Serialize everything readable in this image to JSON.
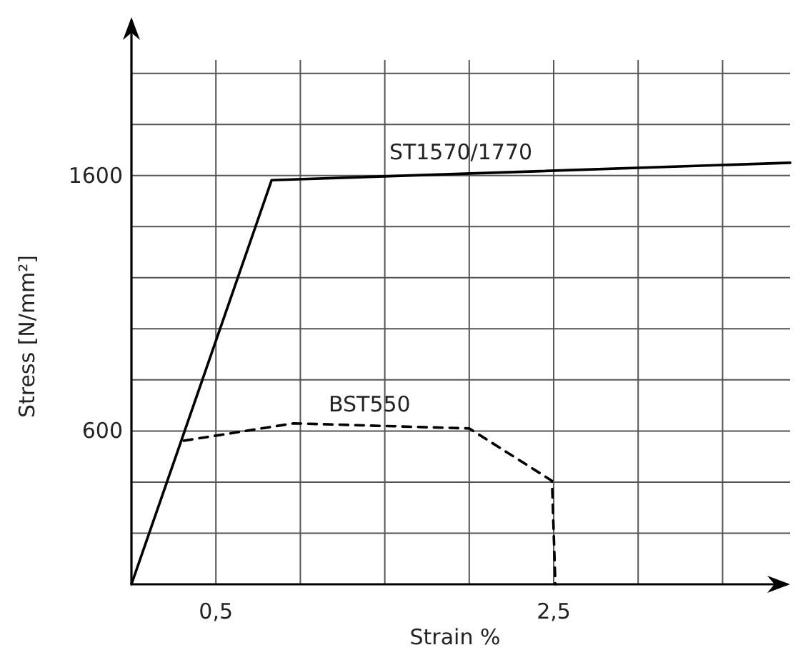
{
  "chart_data": {
    "type": "line",
    "xlabel": "Strain %",
    "ylabel": "Stress [N/mm²]",
    "xlim": [
      0,
      3.9
    ],
    "ylim": [
      0,
      2220
    ],
    "xticks": [
      {
        "value": 0.5,
        "label": "0,5"
      },
      {
        "value": 1,
        "label": null
      },
      {
        "value": 1.5,
        "label": null
      },
      {
        "value": 2,
        "label": null
      },
      {
        "value": 2.5,
        "label": "2,5"
      },
      {
        "value": 3,
        "label": null
      },
      {
        "value": 3.5,
        "label": null
      }
    ],
    "yticks": [
      {
        "value": 200,
        "label": null
      },
      {
        "value": 400,
        "label": null
      },
      {
        "value": 600,
        "label": "600"
      },
      {
        "value": 800,
        "label": null
      },
      {
        "value": 1000,
        "label": null
      },
      {
        "value": 1200,
        "label": null
      },
      {
        "value": 1400,
        "label": null
      },
      {
        "value": 1600,
        "label": "1600"
      },
      {
        "value": 1800,
        "label": null
      },
      {
        "value": 2000,
        "label": null
      }
    ],
    "grid": true,
    "marker": "none",
    "series": [
      {
        "name": "ST1570/1770",
        "color": "#000000",
        "line_style": "solid",
        "x": [
          0,
          0.83,
          3.9
        ],
        "values": [
          0,
          1582,
          1650
        ]
      },
      {
        "name": "BST550",
        "color": "#000000",
        "line_style": "dashed",
        "x": [
          0.31,
          0.96,
          2.0,
          2.49,
          2.51
        ],
        "values": [
          562,
          630,
          610,
          405,
          0
        ]
      }
    ]
  }
}
